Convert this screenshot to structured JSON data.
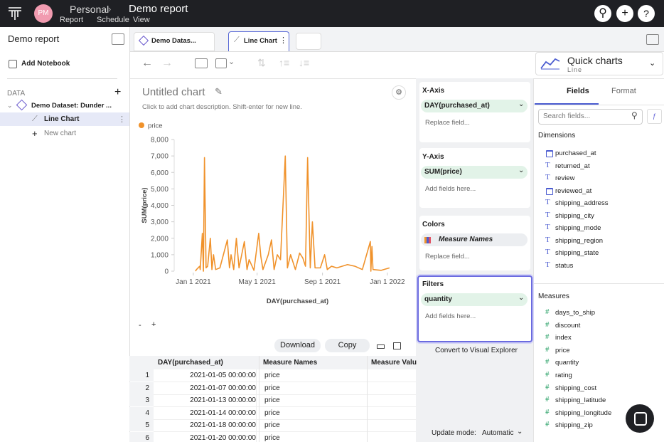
{
  "header": {
    "avatar": "PM",
    "workspace": "Personal",
    "title": "Demo report",
    "menu": [
      "Report",
      "Schedule",
      "View"
    ]
  },
  "sidebar": {
    "title": "Demo report",
    "add_notebook": "Add Notebook",
    "section": "DATA",
    "dataset": "Demo Dataset: Dunder ...",
    "items": [
      "Line Chart",
      "New chart"
    ]
  },
  "tabs": [
    "Demo Datas...",
    "Line Chart"
  ],
  "quick_charts": {
    "title": "Quick charts",
    "subtitle": "Line"
  },
  "chart_header": {
    "title": "Untitled chart",
    "description": "Click to add chart description. Shift-enter for new line."
  },
  "chart_data": {
    "type": "line",
    "x_label": "DAY(purchased_at)",
    "y_label": "SUM(price)",
    "x": [
      "2021-01-05",
      "2021-01-07",
      "2021-01-13",
      "2021-01-14",
      "2021-01-18",
      "2021-01-20",
      "2021-01-22",
      "2021-01-25",
      "2021-01-28",
      "2021-02-02",
      "2021-02-05",
      "2021-02-08",
      "2021-02-12",
      "2021-02-20",
      "2021-03-06",
      "2021-03-10",
      "2021-03-13",
      "2021-03-18",
      "2021-03-23",
      "2021-03-28",
      "2021-04-07",
      "2021-04-12",
      "2021-04-16",
      "2021-04-25",
      "2021-05-04",
      "2021-05-08",
      "2021-05-12",
      "2021-05-22",
      "2021-05-28",
      "2021-06-02",
      "2021-06-08",
      "2021-06-14",
      "2021-06-23",
      "2021-06-27",
      "2021-07-03",
      "2021-07-12",
      "2021-07-20",
      "2021-07-26",
      "2021-07-31",
      "2021-08-04",
      "2021-08-09",
      "2021-08-13",
      "2021-08-18",
      "2021-08-28",
      "2021-09-05",
      "2021-09-10",
      "2021-09-18",
      "2021-09-28",
      "2021-10-18",
      "2021-11-01",
      "2021-11-15",
      "2021-11-30",
      "2021-12-01",
      "2021-12-03",
      "2021-12-05",
      "2021-12-20",
      "2022-01-05"
    ],
    "series": [
      {
        "name": "price",
        "color": "#f0922b",
        "values": [
          0,
          100,
          300,
          100,
          2300,
          0,
          6900,
          200,
          300,
          2000,
          100,
          1000,
          100,
          200,
          1900,
          200,
          1000,
          100,
          2000,
          200,
          1800,
          100,
          700,
          50,
          2300,
          900,
          100,
          1000,
          1900,
          100,
          1000,
          700,
          7000,
          200,
          1000,
          100,
          1100,
          800,
          300,
          6900,
          200,
          3000,
          200,
          200,
          1000,
          100,
          300,
          200,
          400,
          300,
          100,
          1800,
          0,
          1500,
          100,
          50,
          200
        ]
      }
    ],
    "xlim": [
      "2020-11-26",
      "2022-02-17"
    ],
    "xticks": [
      {
        "value": "2021-01-01",
        "label": "Jan 1 2021"
      },
      {
        "value": "2021-05-01",
        "label": "May 1 2021"
      },
      {
        "value": "2021-09-01",
        "label": "Sep 1 2021"
      },
      {
        "value": "2022-01-01",
        "label": "Jan 1 2022"
      }
    ],
    "ylim": [
      0,
      8000
    ],
    "yticks": [
      0,
      1000,
      2000,
      3000,
      4000,
      5000,
      6000,
      7000,
      8000
    ],
    "ytick_labels": [
      "0",
      "1,000",
      "2,000",
      "3,000",
      "4,000",
      "5,000",
      "6,000",
      "7,000",
      "8,000"
    ]
  },
  "zoom": [
    "-",
    "+"
  ],
  "buttons": [
    "Download",
    "Copy"
  ],
  "table": {
    "columns": [
      "DAY(purchased_at)",
      "Measure Names",
      "Measure Valu"
    ],
    "rows": [
      [
        "1",
        "2021-01-05 00:00:00",
        "price"
      ],
      [
        "2",
        "2021-01-07 00:00:00",
        "price"
      ],
      [
        "3",
        "2021-01-13 00:00:00",
        "price"
      ],
      [
        "4",
        "2021-01-14 00:00:00",
        "price"
      ],
      [
        "5",
        "2021-01-18 00:00:00",
        "price"
      ],
      [
        "6",
        "2021-01-20 00:00:00",
        "price"
      ]
    ]
  },
  "shelves": [
    {
      "title": "X-Axis",
      "pill": "DAY(purchased_at)",
      "placeholder": "Replace field..."
    },
    {
      "title": "Y-Axis",
      "pill": "SUM(price)",
      "placeholder": "Add fields here..."
    },
    {
      "title": "Colors",
      "pill": "Measure Names",
      "placeholder": "Replace field..."
    },
    {
      "title": "Filters",
      "pill": "quantity",
      "placeholder": "Add fields here..."
    }
  ],
  "convert": "Convert to Visual Explorer",
  "update_mode": {
    "label": "Update mode:",
    "value": "Automatic"
  },
  "field_tabs": [
    "Fields",
    "Format"
  ],
  "search_placeholder": "Search fields...",
  "dimensions": {
    "title": "Dimensions",
    "fields": [
      "purchased_at",
      "returned_at",
      "review",
      "reviewed_at",
      "shipping_address",
      "shipping_city",
      "shipping_mode",
      "shipping_region",
      "shipping_state",
      "status"
    ]
  },
  "measures": {
    "title": "Measures",
    "fields": [
      "days_to_ship",
      "discount",
      "index",
      "price",
      "quantity",
      "rating",
      "shipping_cost",
      "shipping_latitude",
      "shipping_longitude",
      "shipping_zip"
    ]
  }
}
